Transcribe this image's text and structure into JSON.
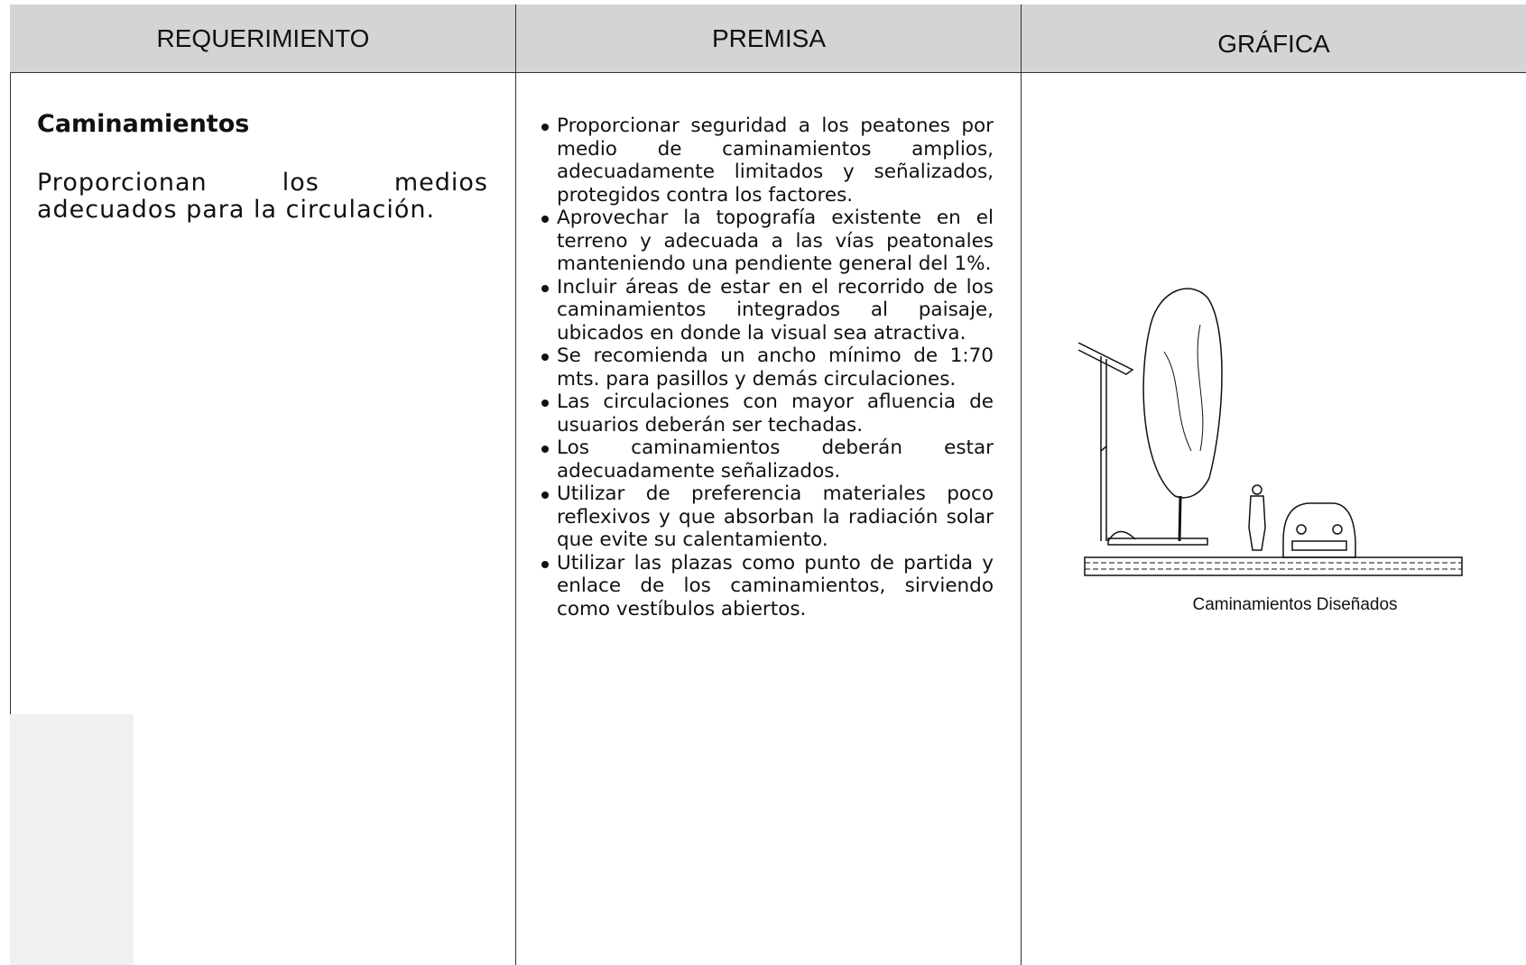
{
  "header": {
    "columns": [
      "REQUERIMIENTO",
      "PREMISA",
      "GRÁFICA"
    ]
  },
  "requirement": {
    "title": "Caminamientos",
    "description": "Proporcionan los medios adecuados para la circulación."
  },
  "premises": [
    "Proporcionar seguridad a los peatones por medio de caminamientos amplios, adecuadamente limitados y señalizados, protegidos contra los factores.",
    "Aprovechar  la topografía existente en el terreno y adecuada a las vías peatonales manteniendo una pendiente general del 1%.",
    "Incluir áreas de estar en el recorrido de los caminamientos integrados al paisaje, ubicados en donde la visual sea atractiva.",
    "Se recomienda un ancho mínimo de 1:70 mts. para pasillos y demás circulaciones.",
    "Las circulaciones con mayor afluencia de usuarios deberán ser techadas.",
    "Los caminamientos deberán estar adecuadamente señalizados.",
    "Utilizar de preferencia materiales poco reflexivos y que absorban la radiación solar que evite su calentamiento.",
    "Utilizar las plazas como punto de partida y enlace de los caminamientos, sirviendo como vestíbulos abiertos."
  ],
  "graphic": {
    "caption": "Caminamientos  Diseñados"
  }
}
